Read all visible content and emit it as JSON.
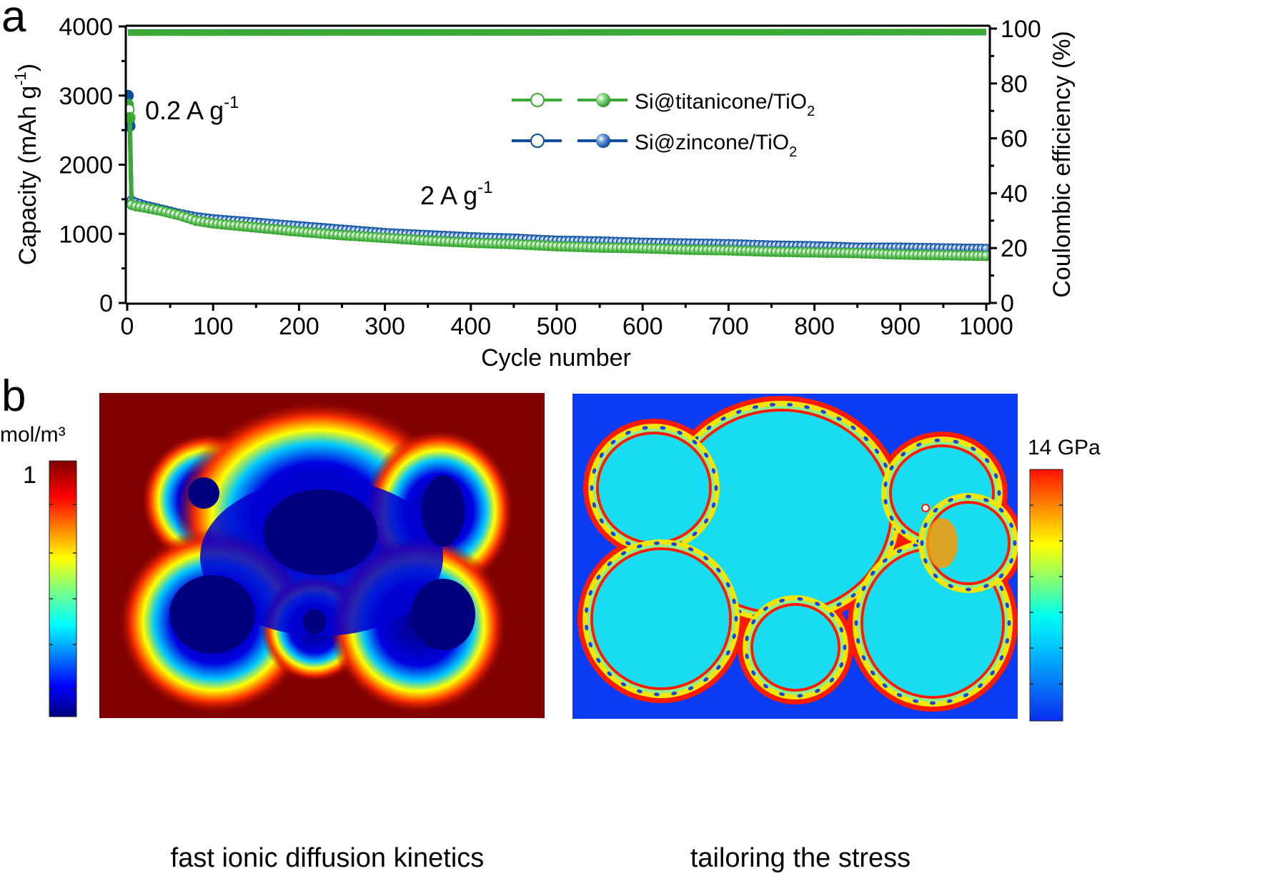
{
  "figure": {
    "panel_a_label": "a",
    "panel_b_label": "b"
  },
  "chart_data": [
    {
      "type": "scatter",
      "title": "",
      "xlabel": "Cycle number",
      "ylabel": "Capacity (mAh g-1)",
      "ylabel_parts": {
        "main": "Capacity (mAh g",
        "sup": "-1",
        "close": ")"
      },
      "y2label": "Coulombic efficiency (%)",
      "xlim": [
        0,
        1000
      ],
      "ylim": [
        0,
        4000
      ],
      "y2lim": [
        0,
        100
      ],
      "xticks": [
        "0",
        "100",
        "200",
        "300",
        "400",
        "500",
        "600",
        "700",
        "800",
        "900",
        "1000"
      ],
      "yticks": [
        "0",
        "1000",
        "2000",
        "3000",
        "4000"
      ],
      "y2ticks": [
        "0",
        "20",
        "40",
        "60",
        "80",
        "100"
      ],
      "grid": false,
      "legend_position": "top-center",
      "annotations": [
        {
          "text": "0.2 A g",
          "sup": "-1",
          "x": 25,
          "y": 2740
        },
        {
          "text": "2 A g",
          "sup": "-1",
          "x": 420,
          "y": 1500
        }
      ],
      "series": [
        {
          "name": "Si@titanicone/TiO2",
          "legend_main": "Si@titanicone/TiO",
          "legend_sub": "2",
          "color": "#3aaa35",
          "capacity": {
            "x": [
              1,
              2,
              3,
              5,
              10,
              20,
              40,
              60,
              80,
              100,
              150,
              200,
              250,
              300,
              350,
              400,
              450,
              500,
              550,
              600,
              650,
              700,
              750,
              800,
              850,
              900,
              950,
              1000
            ],
            "y": [
              2870,
              2800,
              2680,
              1420,
              1400,
              1380,
              1330,
              1270,
              1190,
              1150,
              1090,
              1030,
              980,
              940,
              900,
              870,
              850,
              820,
              800,
              790,
              770,
              760,
              740,
              730,
              720,
              700,
              690,
              680
            ]
          },
          "coulombic_efficiency": {
            "x": [
              1,
              1000
            ],
            "y": [
              98.5,
              98.8
            ]
          }
        },
        {
          "name": "Si@zincone/TiO2",
          "legend_main": "Si@zincone/TiO",
          "legend_sub": "2",
          "color": "#0a4f9e",
          "capacity": {
            "x": [
              1,
              2,
              3,
              5,
              10,
              20,
              40,
              60,
              80,
              100,
              150,
              200,
              250,
              300,
              350,
              400,
              450,
              500,
              550,
              600,
              650,
              700,
              750,
              800,
              850,
              900,
              950,
              1000
            ],
            "y": [
              3000,
              2640,
              2560,
              1480,
              1450,
              1410,
              1350,
              1290,
              1240,
              1210,
              1160,
              1110,
              1060,
              1010,
              980,
              950,
              930,
              900,
              890,
              870,
              860,
              850,
              830,
              820,
              800,
              800,
              790,
              780
            ]
          },
          "coulombic_efficiency": {
            "x": [
              1,
              1000
            ],
            "y": [
              98.6,
              98.7
            ]
          }
        }
      ]
    },
    {
      "type": "heatmap",
      "title": "fast ionic diffusion kinetics",
      "colorbar_unit": "mol/m³",
      "colorbar_max_label": "1",
      "colormap": "jet",
      "background_color": "#800000"
    },
    {
      "type": "heatmap",
      "title": "tailoring the stress",
      "colorbar_unit": "14 GPa",
      "colormap": "jet",
      "background_color": "#0a3cf5"
    }
  ]
}
